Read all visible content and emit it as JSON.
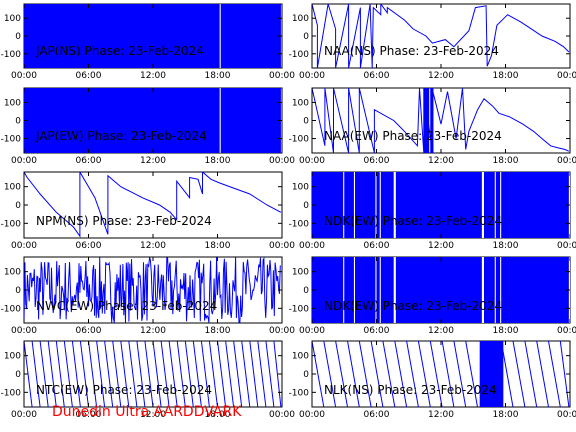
{
  "footer": "Dunedin Ultra AARDDVARK",
  "colors": {
    "trace": "#0000ff",
    "footer": "#ff0000",
    "axes": "#000000"
  },
  "chart_data": [
    {
      "id": "jap-ns",
      "type": "line",
      "title": "JAP(NS) Phase: 23-Feb-2024",
      "xticks": [
        "00:00",
        "06:00",
        "12:00",
        "18:00",
        "00:00"
      ],
      "xlim": [
        0,
        24
      ],
      "yticks": [
        "100",
        "0",
        "-100"
      ],
      "ylim": [
        -180,
        180
      ],
      "series": [
        {
          "style": "band",
          "x": [
            0,
            23.9
          ],
          "y": [
            -180,
            180
          ],
          "gaps": [
            [
              18.2,
              18.3
            ]
          ]
        }
      ]
    },
    {
      "id": "naa-ns",
      "type": "line",
      "title": "NAA(NS) Phase: 23-Feb-2024",
      "xticks": [
        "00:00",
        "06:00",
        "12:00",
        "18:00",
        "00:00"
      ],
      "xlim": [
        0,
        24
      ],
      "yticks": [
        "100",
        "0",
        "-100"
      ],
      "ylim": [
        -180,
        180
      ],
      "series": [
        {
          "style": "line",
          "x": [
            0,
            0.5,
            0.5,
            1.5,
            2.2,
            2.2,
            3.4,
            3.4,
            4.5,
            4.5,
            5.4,
            5.6,
            5.7,
            6.4,
            6.4,
            7,
            7,
            8.6,
            9.4,
            10.6,
            11.2,
            12.4,
            13.2,
            13.2,
            14.6,
            15.2,
            16.2,
            16.3,
            16.7,
            17.2,
            18.2,
            19.4,
            20.4,
            21.4,
            22.6,
            23.4,
            23.9
          ],
          "y": [
            180,
            60,
            -180,
            180,
            40,
            -180,
            180,
            -180,
            160,
            -180,
            180,
            -180,
            160,
            120,
            180,
            130,
            160,
            90,
            40,
            0,
            -40,
            -20,
            -60,
            -60,
            30,
            160,
            170,
            -170,
            -110,
            60,
            120,
            80,
            40,
            0,
            -30,
            -60,
            -90
          ]
        }
      ]
    },
    {
      "id": "jap-ew",
      "type": "line",
      "title": "JAP(EW) Phase: 23-Feb-2024",
      "xticks": [
        "00:00",
        "06:00",
        "12:00",
        "18:00",
        "00:00"
      ],
      "xlim": [
        0,
        24
      ],
      "yticks": [
        "100",
        "0",
        "-100"
      ],
      "ylim": [
        -180,
        180
      ],
      "series": [
        {
          "style": "band",
          "x": [
            0,
            23.9
          ],
          "y": [
            -180,
            180
          ],
          "gaps": [
            [
              18.2,
              18.3
            ]
          ]
        }
      ]
    },
    {
      "id": "naa-ew",
      "type": "line",
      "title": "NAA(EW) Phase: 23-Feb-2024",
      "xticks": [
        "00:00",
        "06:00",
        "12:00",
        "18:00",
        "00:00"
      ],
      "xlim": [
        0,
        24
      ],
      "yticks": [
        "100",
        "0",
        "-100"
      ],
      "ylim": [
        -180,
        180
      ],
      "series": [
        {
          "style": "line",
          "x": [
            0,
            1.2,
            1.2,
            2,
            2,
            3.4,
            3.4,
            4.4,
            4.4,
            5.8,
            5.8,
            7.6,
            8.6,
            9.8,
            10,
            10.4,
            10.4,
            11.2,
            11.2,
            12,
            12.6,
            13.4,
            14,
            14.3,
            14.6,
            15.4,
            16,
            16.8,
            17.4,
            18.4,
            19.6,
            20.6,
            21.4,
            22.2,
            22.8,
            23.5,
            23.9
          ],
          "y": [
            180,
            -140,
            180,
            -180,
            180,
            -180,
            180,
            -180,
            180,
            -180,
            60,
            0,
            -60,
            -140,
            180,
            -180,
            180,
            -180,
            170,
            -20,
            160,
            -100,
            180,
            -160,
            -60,
            60,
            120,
            80,
            40,
            20,
            -20,
            -60,
            -100,
            -140,
            -150,
            -160,
            -170
          ]
        }
      ],
      "bands": [
        [
          10.4,
          10.9
        ],
        [
          11.0,
          11.3
        ]
      ]
    },
    {
      "id": "npm-ns",
      "type": "line",
      "title": "NPM(NS) Phase: 23-Feb-2024",
      "xticks": [
        "00:00",
        "06:00",
        "12:00",
        "18:00",
        "00:00"
      ],
      "xlim": [
        0,
        24
      ],
      "yticks": [
        "100",
        "0",
        "-100"
      ],
      "ylim": [
        -180,
        180
      ],
      "series": [
        {
          "style": "line",
          "x": [
            0,
            0.3,
            1.5,
            3,
            4.6,
            5.2,
            5.2,
            6.6,
            7.8,
            7.8,
            9,
            11,
            12.6,
            13.6,
            14.2,
            14.2,
            15.4,
            15.4,
            16.2,
            16.6,
            16.6,
            17.4,
            18.2,
            19.6,
            21,
            22.6,
            23.9
          ],
          "y": [
            180,
            150,
            60,
            -40,
            -120,
            -170,
            180,
            40,
            -160,
            160,
            100,
            40,
            0,
            -40,
            -80,
            130,
            40,
            150,
            140,
            60,
            180,
            140,
            120,
            90,
            60,
            0,
            -40
          ]
        }
      ]
    },
    {
      "id": "ndk-ew-a",
      "type": "line",
      "title": "NDK(EW) Phase: 23-Feb-2024",
      "xticks": [
        "00:00",
        "06:00",
        "12:00",
        "18:00",
        "00:00"
      ],
      "xlim": [
        0,
        24
      ],
      "yticks": [
        "100",
        "0",
        "-100"
      ],
      "ylim": [
        -180,
        180
      ],
      "series": [
        {
          "style": "band",
          "x": [
            0,
            23.9
          ],
          "y": [
            -180,
            180
          ],
          "gaps": [
            [
              2.9,
              3.0
            ],
            [
              3.9,
              4.0
            ],
            [
              5.9,
              6.0
            ],
            [
              6.3,
              6.4
            ],
            [
              7.6,
              7.8
            ],
            [
              15.8,
              16.0
            ],
            [
              17.0,
              17.1
            ],
            [
              17.5,
              17.6
            ],
            [
              23.9,
              24
            ]
          ]
        }
      ]
    },
    {
      "id": "nwc-ew",
      "type": "line",
      "title": "NWC(EW) Phase: 23-Feb-2024",
      "xticks": [
        "00:00",
        "06:00",
        "12:00",
        "18:00",
        "00:00"
      ],
      "xlim": [
        0,
        24
      ],
      "yticks": [
        "100",
        "0",
        "-100"
      ],
      "ylim": [
        -180,
        180
      ],
      "series": [
        {
          "style": "noise",
          "x": [
            0,
            23.9
          ],
          "y": [
            -180,
            180
          ]
        }
      ]
    },
    {
      "id": "ndk-ew-b",
      "type": "line",
      "title": "NDK(EW) Phase: 23-Feb-2024",
      "xticks": [
        "00:00",
        "06:00",
        "12:00",
        "18:00",
        "00:00"
      ],
      "xlim": [
        0,
        24
      ],
      "yticks": [
        "100",
        "0",
        "-100"
      ],
      "ylim": [
        -180,
        180
      ],
      "series": [
        {
          "style": "band",
          "x": [
            0,
            23.9
          ],
          "y": [
            -180,
            180
          ],
          "gaps": [
            [
              2.9,
              3.0
            ],
            [
              3.9,
              4.0
            ],
            [
              5.9,
              6.0
            ],
            [
              6.3,
              6.4
            ],
            [
              7.6,
              7.8
            ],
            [
              15.8,
              16.0
            ],
            [
              17.0,
              17.1
            ],
            [
              17.5,
              17.6
            ],
            [
              23.9,
              24
            ]
          ]
        }
      ]
    },
    {
      "id": "ntc-ew",
      "type": "line",
      "title": "NTC(EW) Phase: 23-Feb-2024",
      "xticks": [
        "00:00",
        "06:00",
        "12:00",
        "18:00",
        "00:00"
      ],
      "xlim": [
        0,
        24
      ],
      "yticks": [
        "100",
        "0",
        "-100"
      ],
      "ylim": [
        -180,
        180
      ],
      "series": [
        {
          "style": "sawtooth",
          "x": [
            0,
            23.9
          ],
          "y": [
            -180,
            180
          ],
          "period_hours": 0.75
        }
      ]
    },
    {
      "id": "nlk-ns",
      "type": "line",
      "title": "NLK(NS) Phase: 23-Feb-2024",
      "xticks": [
        "00:00",
        "06:00",
        "12:00",
        "18:00",
        "00:00"
      ],
      "xlim": [
        0,
        24
      ],
      "yticks": [
        "100",
        "0",
        "-100"
      ],
      "ylim": [
        -180,
        180
      ],
      "series": [
        {
          "style": "sawtooth",
          "x": [
            0,
            23.9
          ],
          "y": [
            -180,
            180
          ],
          "period_hours": 1.1,
          "gaps": [
            [
              15.0,
              15.6
            ]
          ]
        }
      ],
      "bands": [
        [
          15.6,
          17.8
        ]
      ]
    }
  ]
}
